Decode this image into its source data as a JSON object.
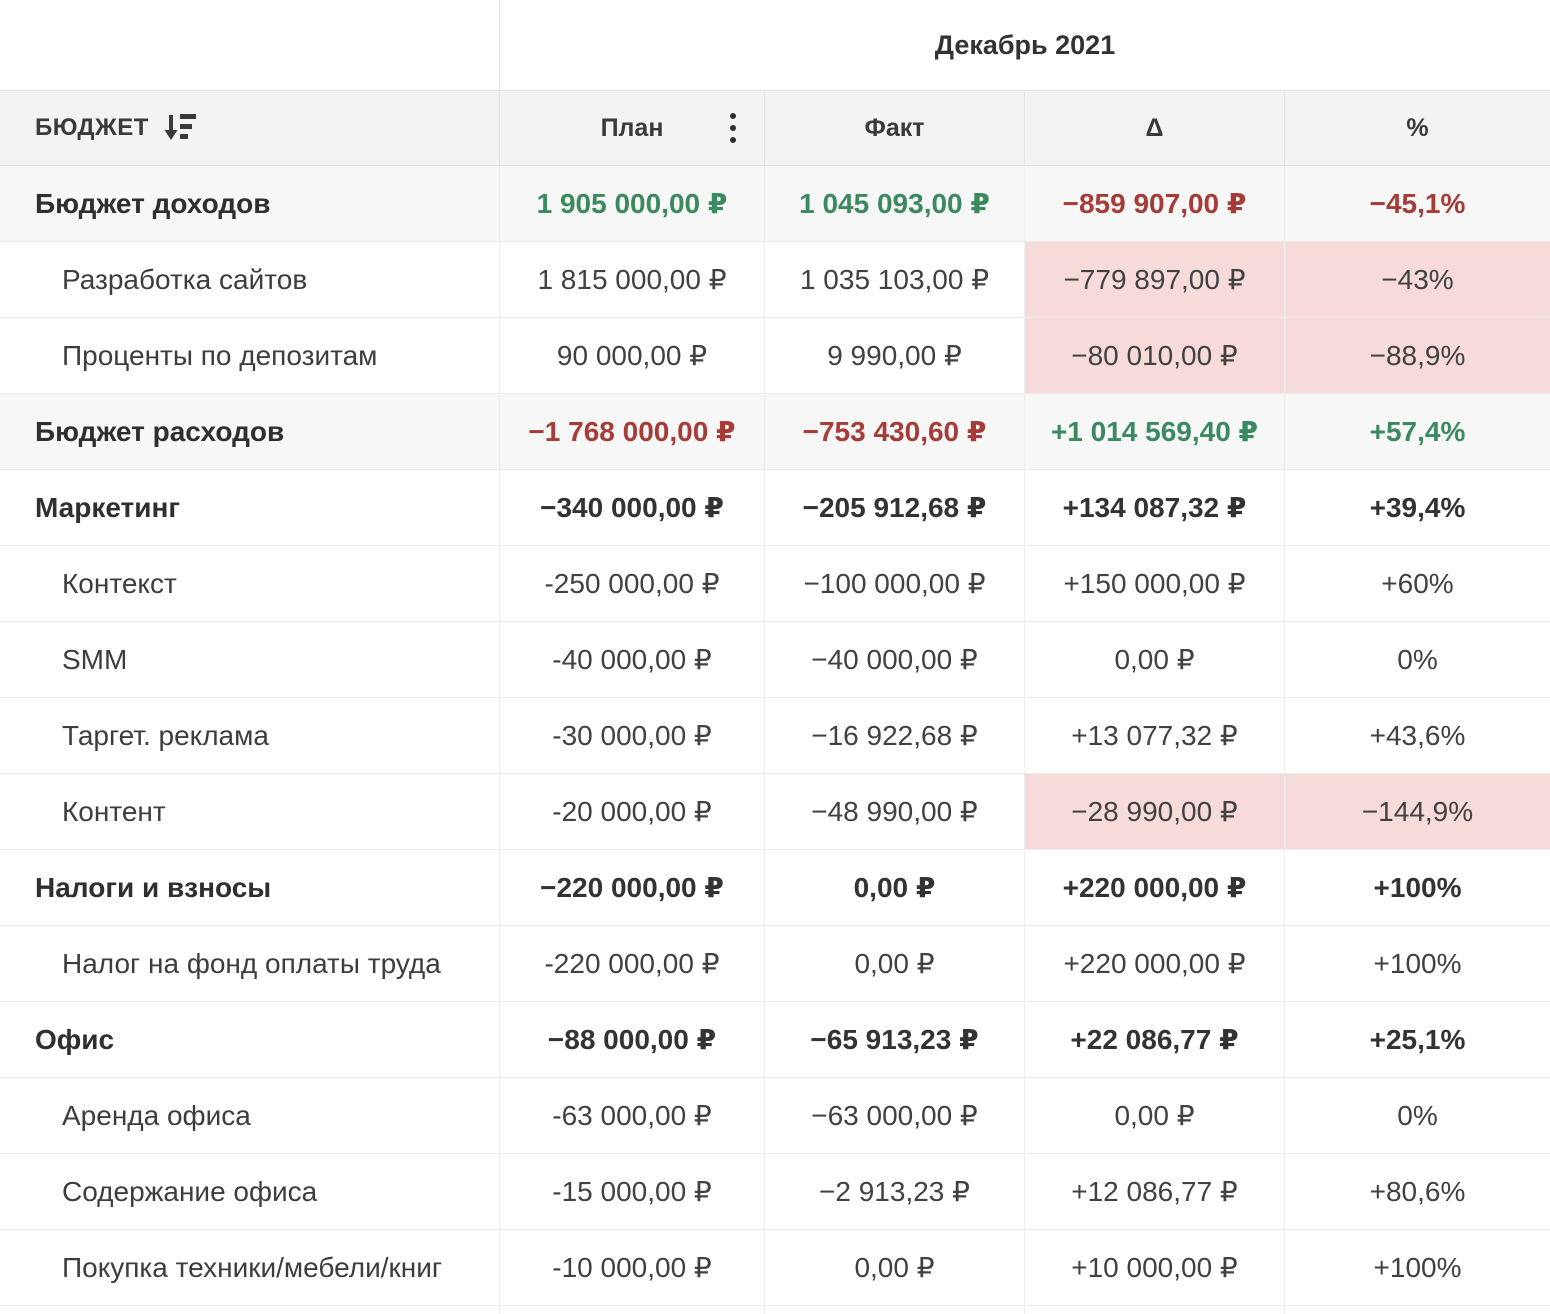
{
  "period": {
    "title": "Декабрь 2021"
  },
  "columns": {
    "budget": "БЮДЖЕТ",
    "plan": "План",
    "fact": "Факт",
    "delta": "Δ",
    "percent": "%"
  },
  "icons": {
    "sort": "sort-descending-icon",
    "menu": "kebab-menu-icon"
  },
  "colors": {
    "positive_green": "#3b8a5f",
    "negative_red": "#a53c38",
    "negative_cell_pink": "#f7dbdb",
    "header_bg": "#f3f3f3",
    "summary_row_bg": "#f7f7f7"
  },
  "rows": [
    {
      "label": "Бюджет доходов",
      "level": "parent",
      "shaded": true,
      "cells": [
        {
          "text": "1 905 000,00 ₽",
          "color": "green",
          "pink": false
        },
        {
          "text": "1 045 093,00 ₽",
          "color": "green",
          "pink": false
        },
        {
          "text": "−859 907,00 ₽",
          "color": "red",
          "pink": false
        },
        {
          "text": "−45,1%",
          "color": "red",
          "pink": false
        }
      ]
    },
    {
      "label": "Разработка сайтов",
      "level": "child",
      "shaded": false,
      "cells": [
        {
          "text": "1 815 000,00 ₽",
          "color": "default",
          "pink": false
        },
        {
          "text": "1 035 103,00 ₽",
          "color": "default",
          "pink": false
        },
        {
          "text": "−779 897,00 ₽",
          "color": "default",
          "pink": true
        },
        {
          "text": "−43%",
          "color": "default",
          "pink": true
        }
      ]
    },
    {
      "label": "Проценты по депозитам",
      "level": "child",
      "shaded": false,
      "cells": [
        {
          "text": "90 000,00 ₽",
          "color": "default",
          "pink": false
        },
        {
          "text": "9 990,00 ₽",
          "color": "default",
          "pink": false
        },
        {
          "text": "−80 010,00 ₽",
          "color": "default",
          "pink": true
        },
        {
          "text": "−88,9%",
          "color": "default",
          "pink": true
        }
      ]
    },
    {
      "label": "Бюджет расходов",
      "level": "parent",
      "shaded": true,
      "cells": [
        {
          "text": "−1 768 000,00 ₽",
          "color": "red",
          "pink": false
        },
        {
          "text": "−753 430,60 ₽",
          "color": "red",
          "pink": false
        },
        {
          "text": "+1 014 569,40 ₽",
          "color": "green",
          "pink": false
        },
        {
          "text": "+57,4%",
          "color": "green",
          "pink": false
        }
      ]
    },
    {
      "label": "Маркетинг",
      "level": "parent",
      "shaded": false,
      "cells": [
        {
          "text": "−340 000,00 ₽",
          "color": "default",
          "pink": false
        },
        {
          "text": "−205 912,68 ₽",
          "color": "default",
          "pink": false
        },
        {
          "text": "+134 087,32 ₽",
          "color": "default",
          "pink": false
        },
        {
          "text": "+39,4%",
          "color": "default",
          "pink": false
        }
      ]
    },
    {
      "label": "Контекст",
      "level": "child",
      "shaded": false,
      "cells": [
        {
          "text": "-250 000,00 ₽",
          "color": "default",
          "pink": false
        },
        {
          "text": "−100 000,00 ₽",
          "color": "default",
          "pink": false
        },
        {
          "text": "+150 000,00 ₽",
          "color": "default",
          "pink": false
        },
        {
          "text": "+60%",
          "color": "default",
          "pink": false
        }
      ]
    },
    {
      "label": "SMM",
      "level": "child",
      "shaded": false,
      "cells": [
        {
          "text": "-40 000,00 ₽",
          "color": "default",
          "pink": false
        },
        {
          "text": "−40 000,00 ₽",
          "color": "default",
          "pink": false
        },
        {
          "text": "0,00 ₽",
          "color": "default",
          "pink": false
        },
        {
          "text": "0%",
          "color": "default",
          "pink": false
        }
      ]
    },
    {
      "label": "Таргет. реклама",
      "level": "child",
      "shaded": false,
      "cells": [
        {
          "text": "-30 000,00 ₽",
          "color": "default",
          "pink": false
        },
        {
          "text": "−16 922,68 ₽",
          "color": "default",
          "pink": false
        },
        {
          "text": "+13 077,32 ₽",
          "color": "default",
          "pink": false
        },
        {
          "text": "+43,6%",
          "color": "default",
          "pink": false
        }
      ]
    },
    {
      "label": "Контент",
      "level": "child",
      "shaded": false,
      "cells": [
        {
          "text": "-20 000,00 ₽",
          "color": "default",
          "pink": false
        },
        {
          "text": "−48 990,00 ₽",
          "color": "default",
          "pink": false
        },
        {
          "text": "−28 990,00 ₽",
          "color": "default",
          "pink": true
        },
        {
          "text": "−144,9%",
          "color": "default",
          "pink": true
        }
      ]
    },
    {
      "label": "Налоги и взносы",
      "level": "parent",
      "shaded": false,
      "cells": [
        {
          "text": "−220 000,00 ₽",
          "color": "default",
          "pink": false
        },
        {
          "text": "0,00 ₽",
          "color": "default",
          "pink": false
        },
        {
          "text": "+220 000,00 ₽",
          "color": "default",
          "pink": false
        },
        {
          "text": "+100%",
          "color": "default",
          "pink": false
        }
      ]
    },
    {
      "label": "Налог на фонд оплаты труда",
      "level": "child",
      "shaded": false,
      "cells": [
        {
          "text": "-220 000,00 ₽",
          "color": "default",
          "pink": false
        },
        {
          "text": "0,00 ₽",
          "color": "default",
          "pink": false
        },
        {
          "text": "+220 000,00 ₽",
          "color": "default",
          "pink": false
        },
        {
          "text": "+100%",
          "color": "default",
          "pink": false
        }
      ]
    },
    {
      "label": "Офис",
      "level": "parent",
      "shaded": false,
      "cells": [
        {
          "text": "−88 000,00 ₽",
          "color": "default",
          "pink": false
        },
        {
          "text": "−65 913,23 ₽",
          "color": "default",
          "pink": false
        },
        {
          "text": "+22 086,77 ₽",
          "color": "default",
          "pink": false
        },
        {
          "text": "+25,1%",
          "color": "default",
          "pink": false
        }
      ]
    },
    {
      "label": "Аренда офиса",
      "level": "child",
      "shaded": false,
      "cells": [
        {
          "text": "-63 000,00 ₽",
          "color": "default",
          "pink": false
        },
        {
          "text": "−63 000,00 ₽",
          "color": "default",
          "pink": false
        },
        {
          "text": "0,00 ₽",
          "color": "default",
          "pink": false
        },
        {
          "text": "0%",
          "color": "default",
          "pink": false
        }
      ]
    },
    {
      "label": "Содержание офиса",
      "level": "child",
      "shaded": false,
      "cells": [
        {
          "text": "-15 000,00 ₽",
          "color": "default",
          "pink": false
        },
        {
          "text": "−2 913,23 ₽",
          "color": "default",
          "pink": false
        },
        {
          "text": "+12 086,77 ₽",
          "color": "default",
          "pink": false
        },
        {
          "text": "+80,6%",
          "color": "default",
          "pink": false
        }
      ]
    },
    {
      "label": "Покупка техники/мебели/книг",
      "level": "child",
      "shaded": false,
      "cells": [
        {
          "text": "-10 000,00 ₽",
          "color": "default",
          "pink": false
        },
        {
          "text": "0,00 ₽",
          "color": "default",
          "pink": false
        },
        {
          "text": "+10 000,00 ₽",
          "color": "default",
          "pink": false
        },
        {
          "text": "+100%",
          "color": "default",
          "pink": false
        }
      ]
    }
  ]
}
